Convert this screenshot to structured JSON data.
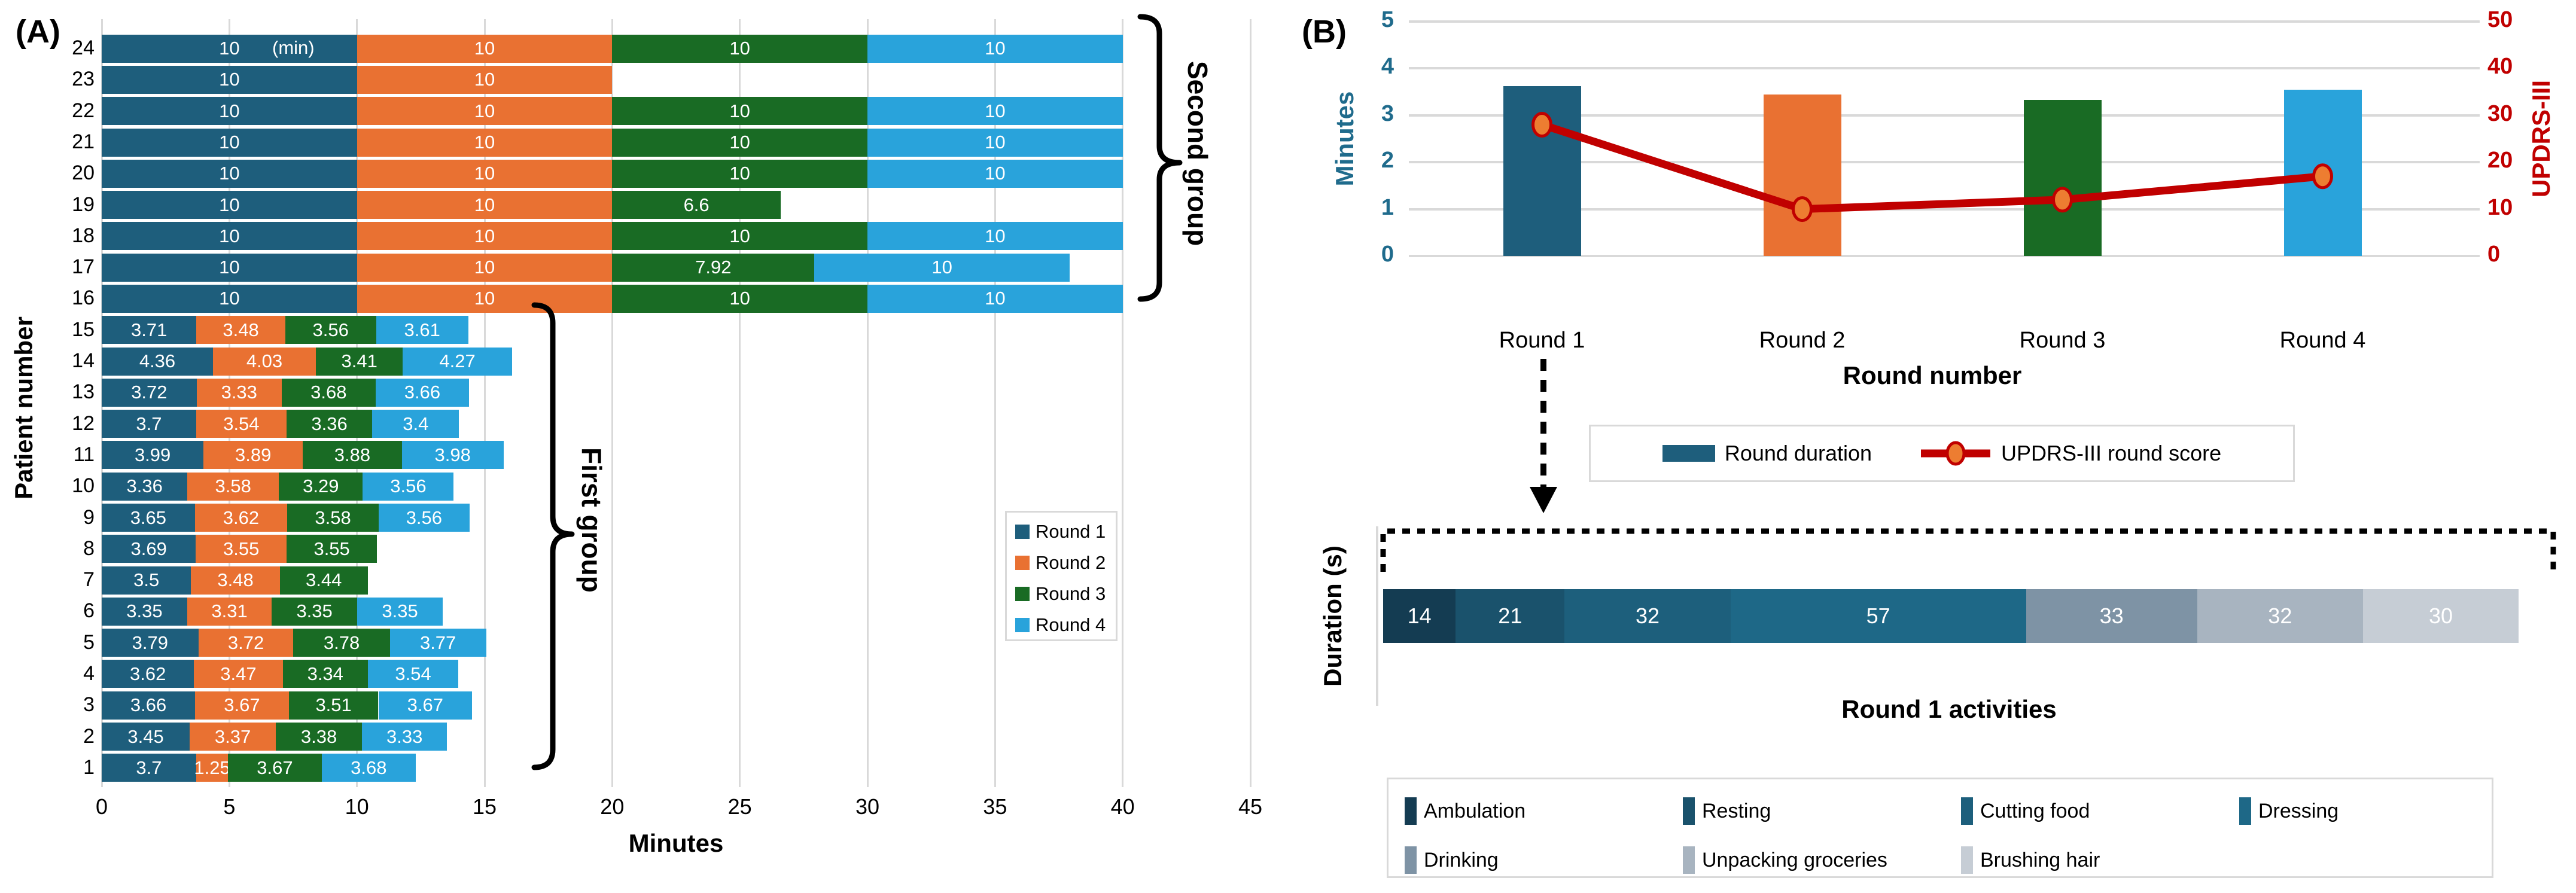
{
  "colors": {
    "rounds": [
      "#1E5E7C",
      "#E97132",
      "#196B24",
      "#29A3DB"
    ],
    "updrs_red": "#C00000",
    "marker_fill": "#ED7D31",
    "grid": "#D9D9D9",
    "axis_teal": "#1F6B8C",
    "activities": [
      "#143C52",
      "#1A526C",
      "#1D5F7C",
      "#1E6887",
      "#7E93A5",
      "#A8B4C0",
      "#C6CDD5"
    ]
  },
  "chart_data": [
    {
      "id": "patient_rounds",
      "type": "bar",
      "orientation": "horizontal",
      "stacked": true,
      "panel_label": "(A)",
      "xlabel": "Minutes",
      "ylabel": "Patient number",
      "xlim": [
        0,
        45
      ],
      "x_ticks": [
        0,
        5,
        10,
        15,
        20,
        25,
        30,
        35,
        40,
        45
      ],
      "unit_annotation": "(min)",
      "grid": "vertical",
      "legend_position": "mid-right",
      "categories": [
        1,
        2,
        3,
        4,
        5,
        6,
        7,
        8,
        9,
        10,
        11,
        12,
        13,
        14,
        15,
        16,
        17,
        18,
        19,
        20,
        21,
        22,
        23,
        24
      ],
      "series": [
        {
          "name": "Round 1",
          "values": [
            3.7,
            3.45,
            3.66,
            3.62,
            3.79,
            3.35,
            3.5,
            3.69,
            3.65,
            3.36,
            3.99,
            3.7,
            3.72,
            4.36,
            3.71,
            10,
            10,
            10,
            10,
            10,
            10,
            10,
            10,
            10
          ]
        },
        {
          "name": "Round 2",
          "values": [
            1.25,
            3.37,
            3.67,
            3.47,
            3.72,
            3.31,
            3.48,
            3.55,
            3.62,
            3.58,
            3.89,
            3.54,
            3.33,
            4.03,
            3.48,
            10,
            10,
            10,
            10,
            10,
            10,
            10,
            10,
            10
          ]
        },
        {
          "name": "Round 3",
          "values": [
            3.67,
            3.38,
            3.51,
            3.34,
            3.78,
            3.35,
            3.44,
            3.55,
            3.58,
            3.29,
            3.88,
            3.36,
            3.68,
            3.41,
            3.56,
            10,
            7.92,
            10,
            6.6,
            10,
            10,
            10,
            null,
            10
          ]
        },
        {
          "name": "Round 4",
          "values": [
            3.68,
            3.33,
            3.67,
            3.54,
            3.77,
            3.35,
            null,
            null,
            3.56,
            3.56,
            3.98,
            3.4,
            3.66,
            4.27,
            3.61,
            10,
            10,
            10,
            null,
            10,
            10,
            10,
            null,
            10
          ]
        }
      ],
      "group_annotations": [
        {
          "label": "First group",
          "patients": "1-15"
        },
        {
          "label": "Second group",
          "patients": "16-24"
        }
      ]
    },
    {
      "id": "round_summary",
      "type": "bar+line",
      "panel_label": "(B)",
      "xlabel": "Round number",
      "categories": [
        "Round 1",
        "Round 2",
        "Round 3",
        "Round 4"
      ],
      "bar_series": {
        "name": "Round duration",
        "ylabel": "Minutes",
        "ylim": [
          0,
          5
        ],
        "y_ticks": [
          0,
          1,
          2,
          3,
          4,
          5
        ],
        "values": [
          3.62,
          3.45,
          3.33,
          3.55
        ]
      },
      "line_series": {
        "name": "UPDRS-III round score",
        "ylabel": "UPDRS-III",
        "ylim": [
          0,
          50
        ],
        "y_ticks": [
          0,
          10,
          20,
          30,
          40,
          50
        ],
        "values": [
          28,
          10,
          12,
          17
        ]
      },
      "grid": "horizontal",
      "legend_position": "below"
    },
    {
      "id": "round1_activities",
      "type": "bar",
      "orientation": "horizontal",
      "stacked": true,
      "title": "Round 1 activities",
      "ylabel": "Duration (s)",
      "categories": [
        "Ambulation",
        "Resting",
        "Cutting food",
        "Dressing",
        "Drinking",
        "Unpacking groceries",
        "Brushing hair"
      ],
      "values": [
        14,
        21,
        32,
        57,
        33,
        32,
        30
      ]
    }
  ]
}
